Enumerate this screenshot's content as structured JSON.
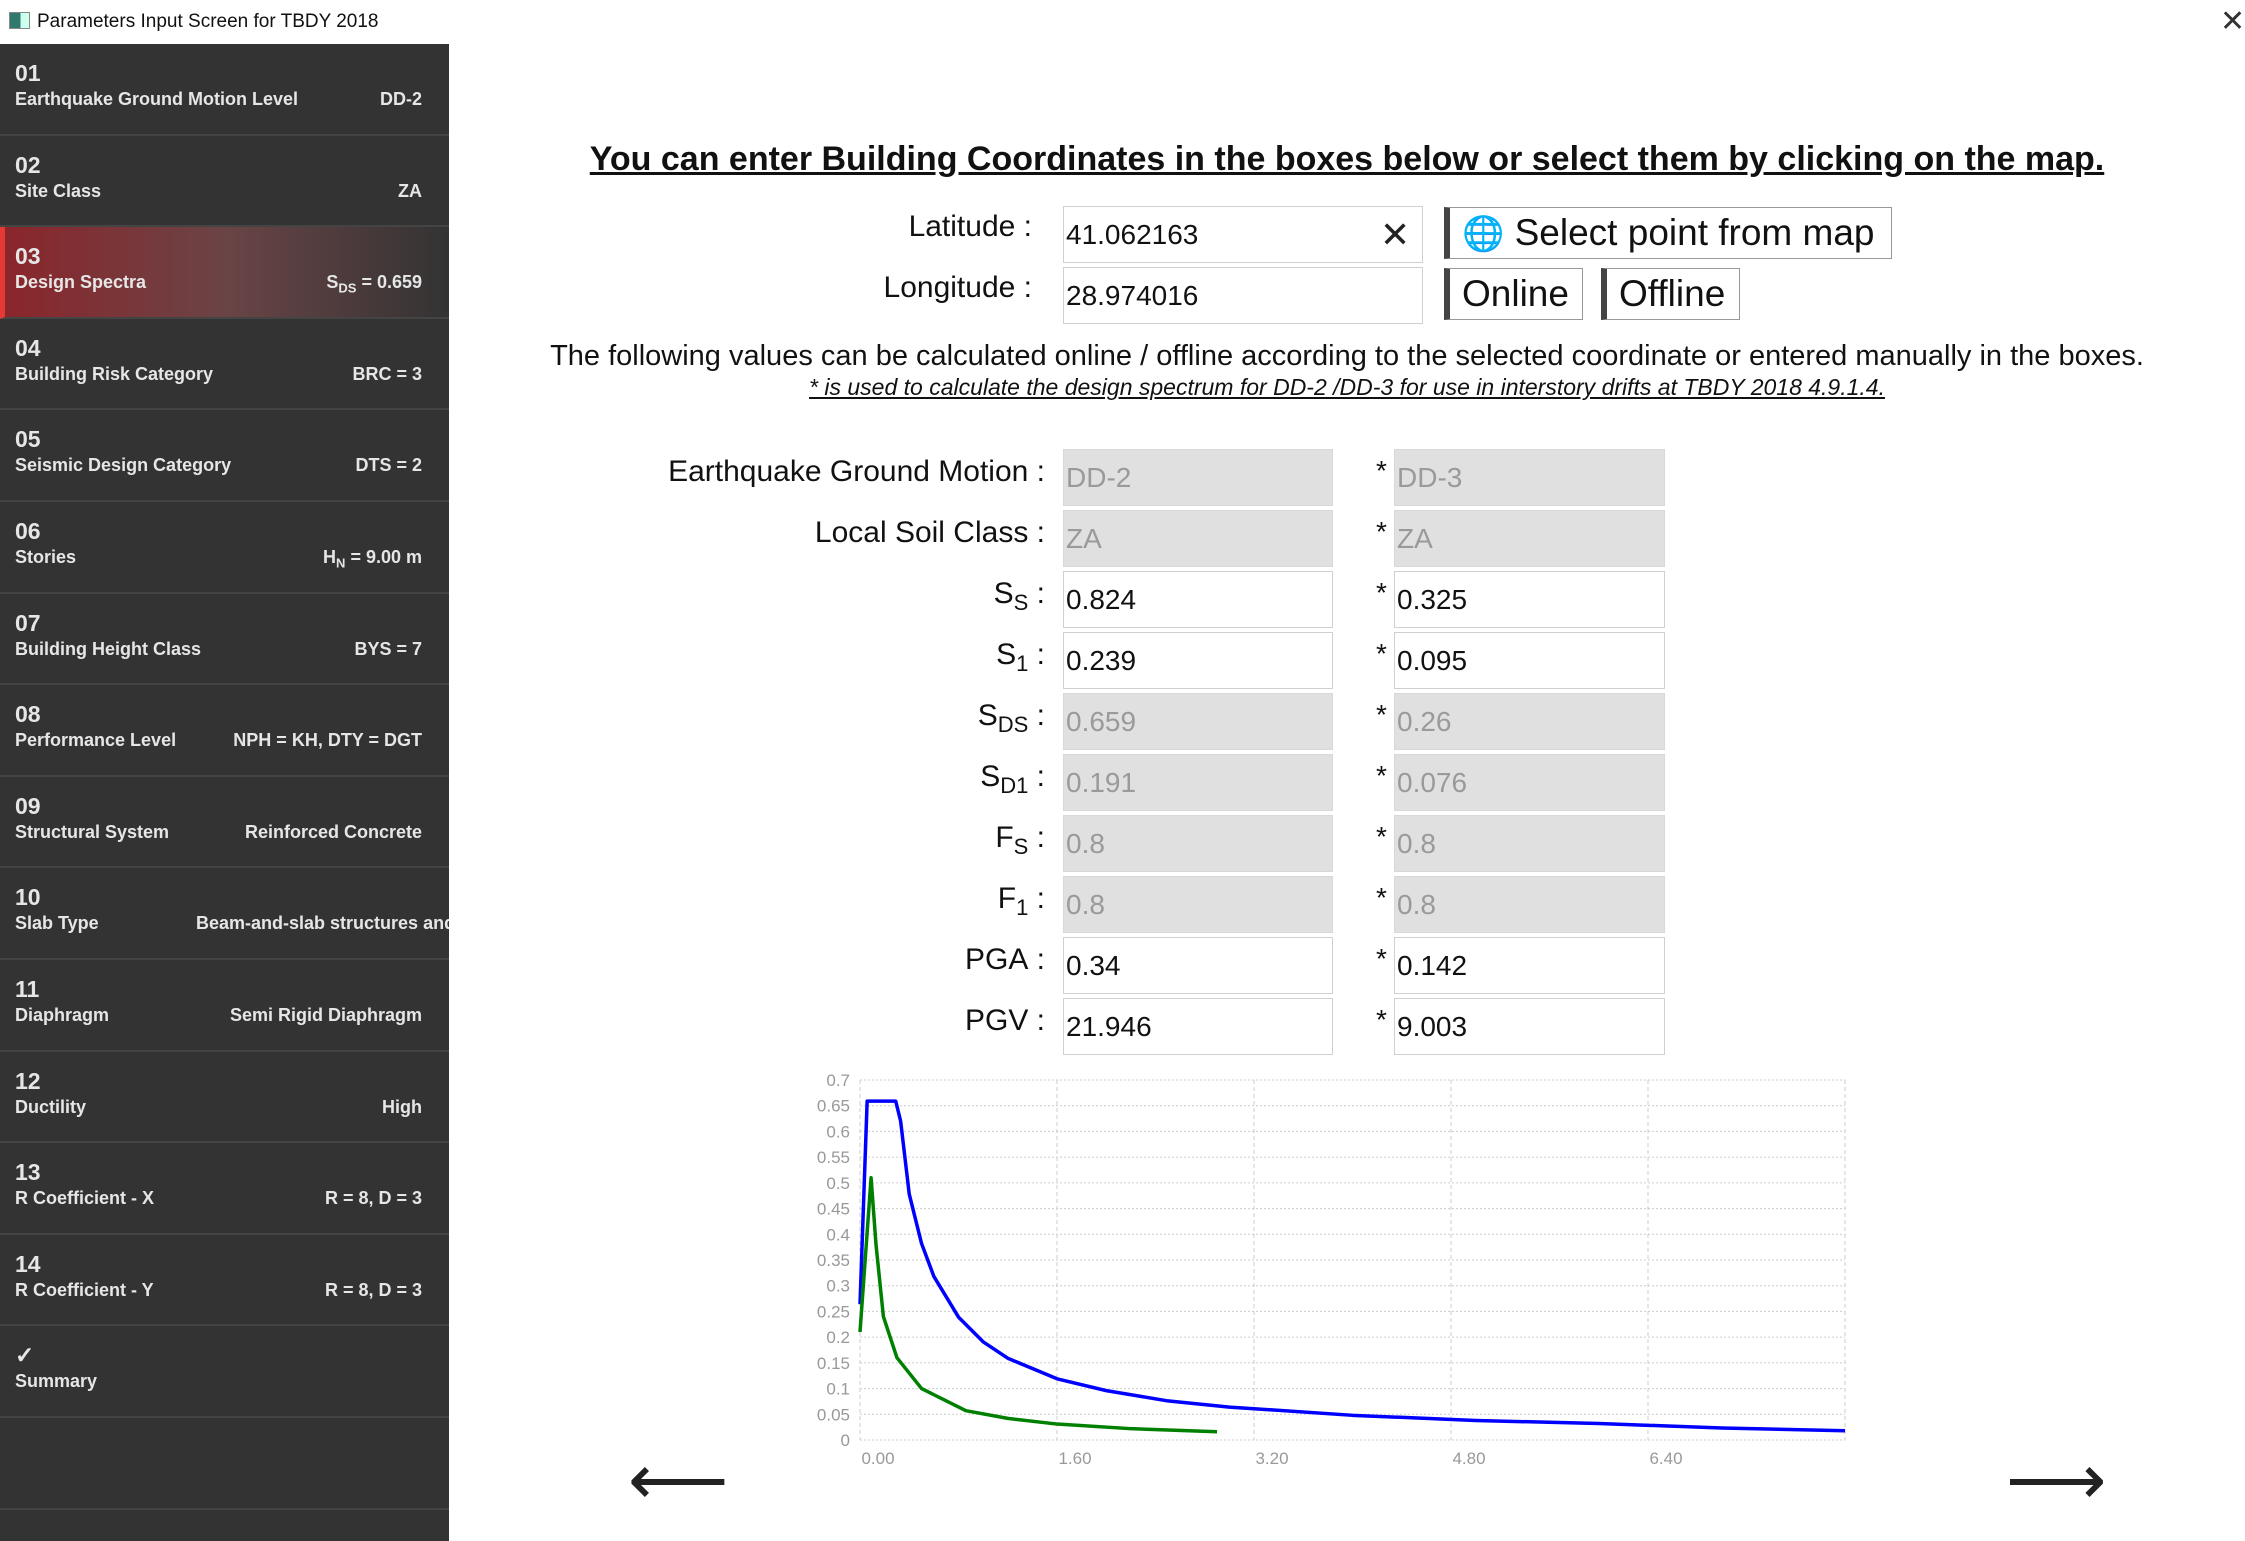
{
  "window": {
    "title": "Parameters Input Screen for TBDY 2018",
    "close_icon": "close-icon"
  },
  "sidebar": {
    "items": [
      {
        "num": "01",
        "label": "Earthquake Ground Motion Level",
        "pre": "DD-2",
        "sub": "",
        "post": ""
      },
      {
        "num": "02",
        "label": "Site Class",
        "pre": "ZA",
        "sub": "",
        "post": ""
      },
      {
        "num": "03",
        "label": "Design Spectra",
        "pre": "S",
        "sub": "DS",
        "post": " = 0.659",
        "active": true
      },
      {
        "num": "04",
        "label": "Building Risk Category",
        "pre": "BRC = 3",
        "sub": "",
        "post": ""
      },
      {
        "num": "05",
        "label": "Seismic Design Category",
        "pre": "DTS = 2",
        "sub": "",
        "post": ""
      },
      {
        "num": "06",
        "label": "Stories",
        "pre": "H",
        "sub": "N",
        "post": " = 9.00 m"
      },
      {
        "num": "07",
        "label": "Building Height Class",
        "pre": "BYS = 7",
        "sub": "",
        "post": ""
      },
      {
        "num": "08",
        "label": "Performance Level",
        "pre": "NPH = KH, DTY = DGT",
        "sub": "",
        "post": ""
      },
      {
        "num": "09",
        "label": "Structural System",
        "pre": "Reinforced Concrete",
        "sub": "",
        "post": ""
      },
      {
        "num": "10",
        "label": "Slab Type",
        "pre": "Beam-and-slab structures and",
        "sub": "",
        "post": "",
        "overflow": true
      },
      {
        "num": "11",
        "label": "Diaphragm",
        "pre": "Semi Rigid Diaphragm",
        "sub": "",
        "post": ""
      },
      {
        "num": "12",
        "label": "Ductility",
        "pre": "High",
        "sub": "",
        "post": ""
      },
      {
        "num": "13",
        "label": "R Coefficient - X",
        "pre": "R = 8, D = 3",
        "sub": "",
        "post": ""
      },
      {
        "num": "14",
        "label": "R Coefficient - Y",
        "pre": "R = 8, D = 3",
        "sub": "",
        "post": ""
      },
      {
        "num": "✓",
        "label": "Summary",
        "pre": "",
        "sub": "",
        "post": ""
      },
      {
        "num": "",
        "label": "",
        "pre": "",
        "sub": "",
        "post": ""
      }
    ],
    "active_color": "#e53935"
  },
  "main": {
    "heading": "You can enter Building Coordinates in the boxes below or select them by clicking on the map.",
    "latitude_label": "Latitude :",
    "latitude": "41.062163",
    "longitude_label": "Longitude :",
    "longitude": "28.974016",
    "select_map": "Select point from map",
    "online": "Online",
    "offline": "Offline",
    "info": "The following values can be calculated online / offline according to the selected coordinate or entered manually in the boxes.",
    "note": "* is used to calculate the design spectrum for DD-2 /DD-3 for use in interstory drifts at TBDY 2018 4.9.1.4.",
    "star": "*",
    "rows": [
      {
        "pre": "Earthquake Ground Motion",
        "sub": "",
        "a": "DD-2",
        "b": "DD-3",
        "ro": true
      },
      {
        "pre": "Local Soil Class",
        "sub": "",
        "a": "ZA",
        "b": "ZA",
        "ro": true
      },
      {
        "pre": "S",
        "sub": "S",
        "a": "0.824",
        "b": "0.325",
        "ro": false
      },
      {
        "pre": "S",
        "sub": "1",
        "a": "0.239",
        "b": "0.095",
        "ro": false
      },
      {
        "pre": "S",
        "sub": "DS",
        "a": "0.659",
        "b": "0.26",
        "ro": true
      },
      {
        "pre": "S",
        "sub": "D1",
        "a": "0.191",
        "b": "0.076",
        "ro": true
      },
      {
        "pre": "F",
        "sub": "S",
        "a": "0.8",
        "b": "0.8",
        "ro": true
      },
      {
        "pre": "F",
        "sub": "1",
        "a": "0.8",
        "b": "0.8",
        "ro": true
      },
      {
        "pre": "PGA",
        "sub": "",
        "a": "0.34",
        "b": "0.142",
        "ro": false
      },
      {
        "pre": "PGV",
        "sub": "",
        "a": "21.946",
        "b": "9.003",
        "ro": false
      }
    ],
    "prev_icon": "arrow-left-icon",
    "next_icon": "arrow-right-icon"
  },
  "chart_data": {
    "type": "line",
    "grid": true,
    "xlim": [
      0,
      8
    ],
    "ylim": [
      0,
      0.7
    ],
    "xticks": [
      "0.00",
      "1.60",
      "3.20",
      "4.80",
      "6.40"
    ],
    "yticks": [
      "0",
      "0.05",
      "0.1",
      "0.15",
      "0.2",
      "0.25",
      "0.3",
      "0.35",
      "0.4",
      "0.45",
      "0.5",
      "0.55",
      "0.6",
      "0.65",
      "0.7"
    ],
    "series": [
      {
        "color": "#0000ff",
        "points": [
          [
            0,
            0.264
          ],
          [
            0.058,
            0.659
          ],
          [
            0.29,
            0.659
          ],
          [
            0.33,
            0.62
          ],
          [
            0.4,
            0.478
          ],
          [
            0.5,
            0.382
          ],
          [
            0.6,
            0.318
          ],
          [
            0.8,
            0.239
          ],
          [
            1.0,
            0.191
          ],
          [
            1.2,
            0.159
          ],
          [
            1.6,
            0.119
          ],
          [
            2.0,
            0.096
          ],
          [
            2.5,
            0.076
          ],
          [
            3.0,
            0.064
          ],
          [
            4.0,
            0.048
          ],
          [
            5.0,
            0.038
          ],
          [
            6.0,
            0.032
          ],
          [
            7.0,
            0.0234
          ],
          [
            8.0,
            0.0179
          ]
        ]
      },
      {
        "color": "#008000",
        "points": [
          [
            0,
            0.21
          ],
          [
            0.09,
            0.51
          ],
          [
            0.13,
            0.38
          ],
          [
            0.19,
            0.24
          ],
          [
            0.3,
            0.16
          ],
          [
            0.5,
            0.1
          ],
          [
            0.86,
            0.057
          ],
          [
            1.2,
            0.042
          ],
          [
            1.6,
            0.031
          ],
          [
            2.2,
            0.022
          ],
          [
            2.9,
            0.016
          ]
        ]
      }
    ]
  }
}
